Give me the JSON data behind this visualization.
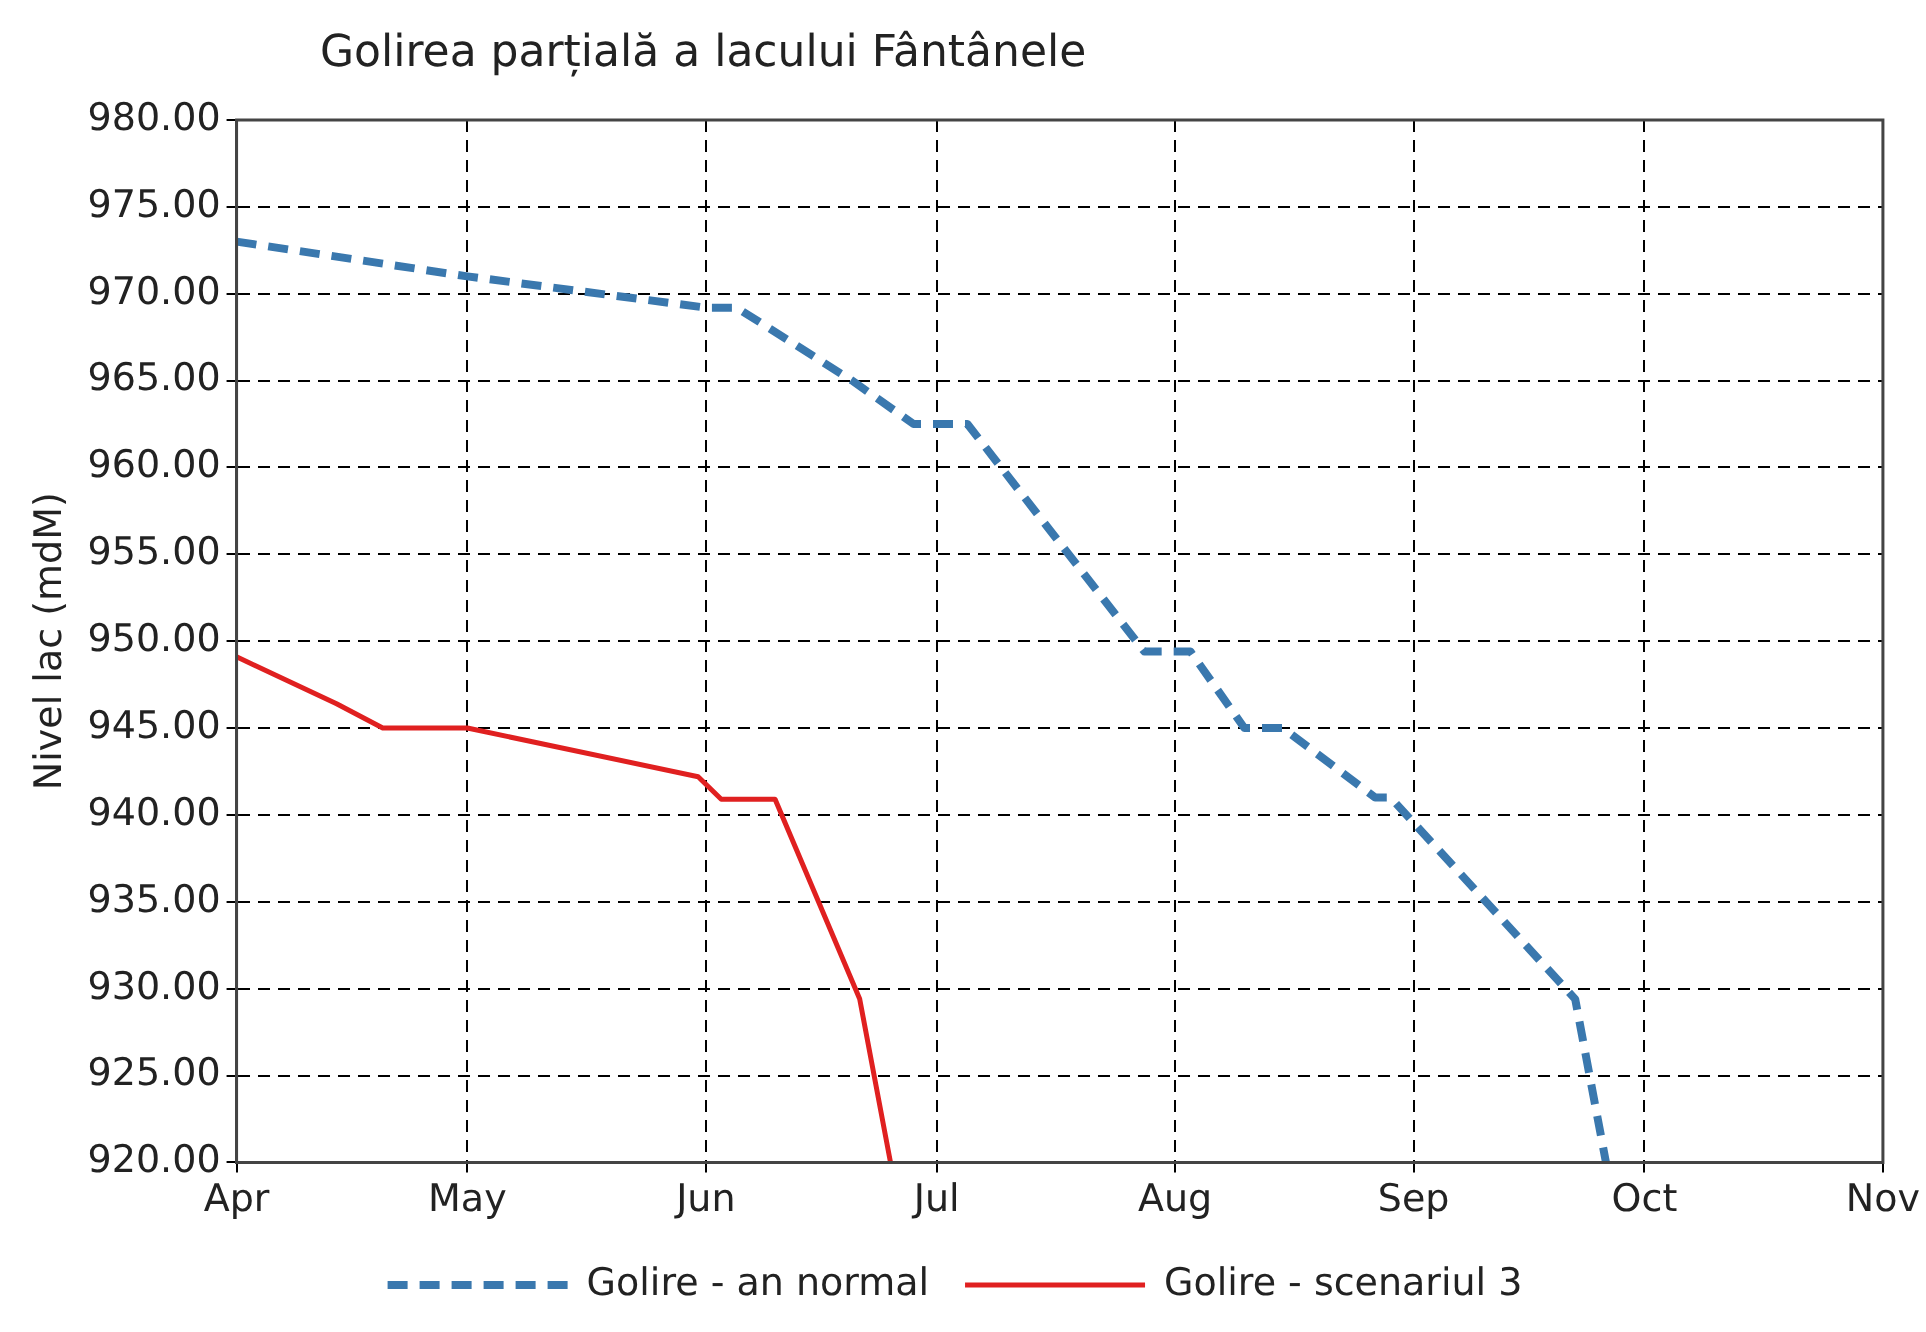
{
  "chart_data": {
    "type": "line",
    "title": "Golirea parțială a lacului Fântânele",
    "ylabel": "Nivel lac (mdM)",
    "xlim": [
      "--04-01",
      "--11-01"
    ],
    "xticks": [
      {
        "value": "--04-01",
        "label": "Apr"
      },
      {
        "value": "--05-01",
        "label": "May"
      },
      {
        "value": "--06-01",
        "label": "Jun"
      },
      {
        "value": "--07-01",
        "label": "Jul"
      },
      {
        "value": "--08-01",
        "label": "Aug"
      },
      {
        "value": "--09-01",
        "label": "Sep"
      },
      {
        "value": "--10-01",
        "label": "Oct"
      },
      {
        "value": "--11-01",
        "label": "Nov"
      }
    ],
    "ylim": [
      920,
      980
    ],
    "yticks": [
      {
        "value": 920,
        "label": "920.00"
      },
      {
        "value": 925,
        "label": "925.00"
      },
      {
        "value": 930,
        "label": "930.00"
      },
      {
        "value": 935,
        "label": "935.00"
      },
      {
        "value": 940,
        "label": "940.00"
      },
      {
        "value": 945,
        "label": "945.00"
      },
      {
        "value": 950,
        "label": "950.00"
      },
      {
        "value": 955,
        "label": "955.00"
      },
      {
        "value": 960,
        "label": "960.00"
      },
      {
        "value": 965,
        "label": "965.00"
      },
      {
        "value": 970,
        "label": "970.00"
      },
      {
        "value": 975,
        "label": "975.00"
      },
      {
        "value": 980,
        "label": "980.00"
      }
    ],
    "grid": true,
    "legend": "bottom",
    "marker": "none",
    "series": [
      {
        "name": "Golire - an normal",
        "color": "#3a78ae",
        "line_style": "dashed",
        "x": [
          "--04-01",
          "--05-01",
          "--06-01",
          "--06-05",
          "--06-20",
          "--06-28",
          "--07-05",
          "--07-28",
          "--08-03",
          "--08-10",
          "--08-15",
          "--08-27",
          "--08-29",
          "--09-22",
          "--09-26"
        ],
        "values": [
          973.0,
          971.0,
          969.2,
          969.2,
          965.0,
          962.5,
          962.5,
          949.4,
          949.4,
          945.0,
          945.0,
          941.0,
          941.0,
          929.4,
          920.0
        ]
      },
      {
        "name": "Golire - scenariul 3",
        "color": "#e02020",
        "line_style": "solid",
        "x": [
          "--04-01",
          "--04-14",
          "--04-20",
          "--05-01",
          "--05-31",
          "--06-03",
          "--06-10",
          "--06-21",
          "--06-25"
        ],
        "values": [
          949.1,
          946.4,
          945.0,
          945.0,
          942.2,
          940.9,
          940.9,
          929.4,
          920.0
        ]
      }
    ]
  }
}
